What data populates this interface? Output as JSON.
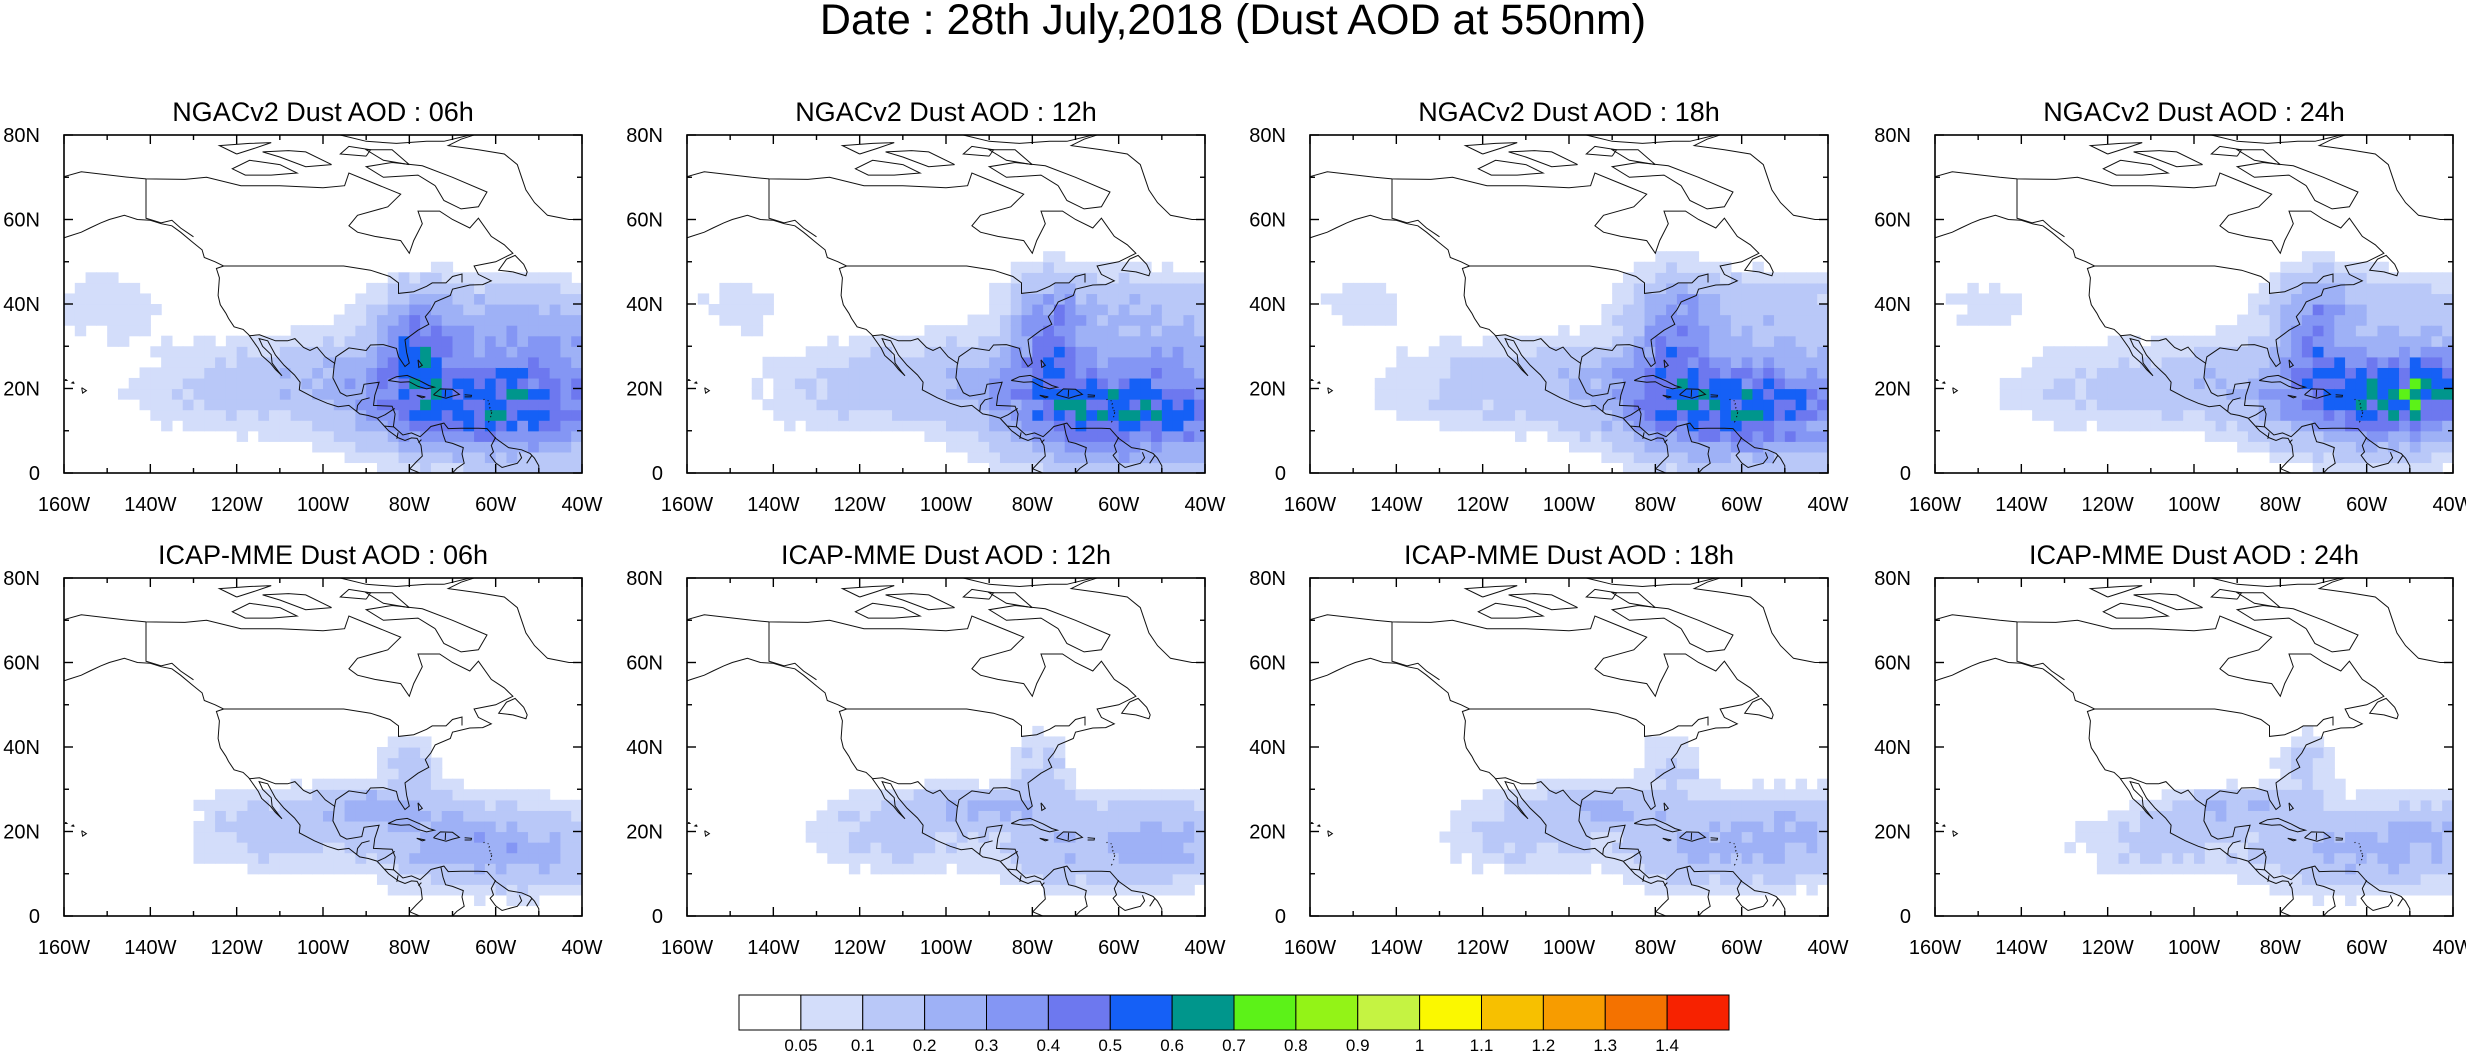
{
  "figure": {
    "title": "Date : 28th July,2018 (Dust AOD at 550nm)"
  },
  "panels": [
    {
      "title": "NGACv2 Dust AOD : 06h",
      "model": "NGACv2",
      "lead": "06h"
    },
    {
      "title": "NGACv2 Dust AOD : 12h",
      "model": "NGACv2",
      "lead": "12h"
    },
    {
      "title": "NGACv2 Dust AOD : 18h",
      "model": "NGACv2",
      "lead": "18h"
    },
    {
      "title": "NGACv2 Dust AOD : 24h",
      "model": "NGACv2",
      "lead": "24h"
    },
    {
      "title": "ICAP-MME Dust AOD : 06h",
      "model": "ICAP-MME",
      "lead": "06h"
    },
    {
      "title": "ICAP-MME Dust AOD : 12h",
      "model": "ICAP-MME",
      "lead": "12h"
    },
    {
      "title": "ICAP-MME Dust AOD : 18h",
      "model": "ICAP-MME",
      "lead": "18h"
    },
    {
      "title": "ICAP-MME Dust AOD : 24h",
      "model": "ICAP-MME",
      "lead": "24h"
    }
  ],
  "map": {
    "lon_range": [
      -160,
      -40
    ],
    "lat_range": [
      0,
      80
    ],
    "lon_ticks": [
      {
        "value": -160,
        "label": "160W"
      },
      {
        "value": -140,
        "label": "140W"
      },
      {
        "value": -120,
        "label": "120W"
      },
      {
        "value": -100,
        "label": "100W"
      },
      {
        "value": -80,
        "label": "80W"
      },
      {
        "value": -60,
        "label": "60W"
      },
      {
        "value": -40,
        "label": "40W"
      }
    ],
    "lat_ticks": [
      {
        "value": 0,
        "label": "0"
      },
      {
        "value": 20,
        "label": "20N"
      },
      {
        "value": 40,
        "label": "40N"
      },
      {
        "value": 60,
        "label": "60N"
      },
      {
        "value": 80,
        "label": "80N"
      }
    ]
  },
  "colorbar": {
    "labels": [
      "0.05",
      "0.1",
      "0.2",
      "0.3",
      "0.4",
      "0.5",
      "0.6",
      "0.7",
      "0.8",
      "0.9",
      "1",
      "1.1",
      "1.2",
      "1.3",
      "1.4"
    ],
    "colors": [
      "#ffffff",
      "#d3ddfa",
      "#b9c8f8",
      "#9eb1f6",
      "#8496f4",
      "#6d78ef",
      "#1560f6",
      "#00968c",
      "#5cf218",
      "#93f317",
      "#c5f342",
      "#fbf800",
      "#f7c000",
      "#f79c00",
      "#f47200",
      "#f72200"
    ]
  },
  "chart_data": {
    "type": "heatmap",
    "variable": "Dust AOD at 550nm",
    "lat_cell_deg": 2.5,
    "lon_cell_deg": 2.5,
    "levels": [
      0.05,
      0.1,
      0.2,
      0.3,
      0.4,
      0.5,
      0.6,
      0.7,
      0.8,
      0.9,
      1,
      1.1,
      1.2,
      1.3,
      1.4
    ],
    "panels": [
      {
        "id": "NGACv2-06h",
        "blobs": [
          {
            "lon": -48,
            "lat": 20,
            "slon": 22,
            "slat": 11,
            "amp": 0.38
          },
          {
            "lon": -68,
            "lat": 14,
            "slon": 16,
            "slat": 7,
            "amp": 0.3
          },
          {
            "lon": -78,
            "lat": 30,
            "slon": 6,
            "slat": 9,
            "amp": 0.3
          },
          {
            "lon": -95,
            "lat": 22,
            "slon": 16,
            "slat": 7,
            "amp": 0.16
          },
          {
            "lon": -60,
            "lat": 38,
            "slon": 18,
            "slat": 6,
            "amp": 0.14
          },
          {
            "lon": -125,
            "lat": 20,
            "slon": 16,
            "slat": 8,
            "amp": 0.1
          },
          {
            "lon": -150,
            "lat": 40,
            "slon": 10,
            "slat": 7,
            "amp": 0.08
          }
        ]
      },
      {
        "id": "NGACv2-12h",
        "blobs": [
          {
            "lon": -46,
            "lat": 18,
            "slon": 22,
            "slat": 11,
            "amp": 0.38
          },
          {
            "lon": -66,
            "lat": 13,
            "slon": 16,
            "slat": 7,
            "amp": 0.3
          },
          {
            "lon": -76,
            "lat": 32,
            "slon": 6,
            "slat": 10,
            "amp": 0.3
          },
          {
            "lon": -95,
            "lat": 22,
            "slon": 16,
            "slat": 7,
            "amp": 0.15
          },
          {
            "lon": -58,
            "lat": 40,
            "slon": 18,
            "slat": 6,
            "amp": 0.14
          },
          {
            "lon": -125,
            "lat": 20,
            "slon": 16,
            "slat": 8,
            "amp": 0.1
          },
          {
            "lon": -148,
            "lat": 40,
            "slon": 8,
            "slat": 5,
            "amp": 0.08
          }
        ]
      },
      {
        "id": "NGACv2-18h",
        "blobs": [
          {
            "lon": -50,
            "lat": 17,
            "slon": 20,
            "slat": 10,
            "amp": 0.4
          },
          {
            "lon": -70,
            "lat": 14,
            "slon": 14,
            "slat": 7,
            "amp": 0.28
          },
          {
            "lon": -76,
            "lat": 32,
            "slon": 6,
            "slat": 10,
            "amp": 0.32
          },
          {
            "lon": -95,
            "lat": 22,
            "slon": 16,
            "slat": 7,
            "amp": 0.15
          },
          {
            "lon": -58,
            "lat": 40,
            "slon": 18,
            "slat": 6,
            "amp": 0.14
          },
          {
            "lon": -125,
            "lat": 20,
            "slon": 16,
            "slat": 8,
            "amp": 0.1
          },
          {
            "lon": -148,
            "lat": 40,
            "slon": 8,
            "slat": 5,
            "amp": 0.08
          }
        ]
      },
      {
        "id": "NGACv2-24h",
        "blobs": [
          {
            "lon": -45,
            "lat": 20,
            "slon": 14,
            "slat": 8,
            "amp": 0.45
          },
          {
            "lon": -62,
            "lat": 16,
            "slon": 16,
            "slat": 8,
            "amp": 0.3
          },
          {
            "lon": -72,
            "lat": 32,
            "slon": 6,
            "slat": 10,
            "amp": 0.3
          },
          {
            "lon": -92,
            "lat": 22,
            "slon": 16,
            "slat": 7,
            "amp": 0.15
          },
          {
            "lon": -56,
            "lat": 40,
            "slon": 18,
            "slat": 6,
            "amp": 0.14
          },
          {
            "lon": -125,
            "lat": 20,
            "slon": 16,
            "slat": 8,
            "amp": 0.1
          },
          {
            "lon": -148,
            "lat": 40,
            "slon": 8,
            "slat": 5,
            "amp": 0.08
          }
        ]
      },
      {
        "id": "ICAP-MME-06h",
        "blobs": [
          {
            "lon": -52,
            "lat": 16,
            "slon": 14,
            "slat": 7,
            "amp": 0.22
          },
          {
            "lon": -75,
            "lat": 18,
            "slon": 12,
            "slat": 7,
            "amp": 0.18
          },
          {
            "lon": -112,
            "lat": 20,
            "slon": 14,
            "slat": 7,
            "amp": 0.14
          },
          {
            "lon": -80,
            "lat": 36,
            "slon": 5,
            "slat": 6,
            "amp": 0.12
          },
          {
            "lon": -90,
            "lat": 26,
            "slon": 10,
            "slat": 3,
            "amp": 0.18
          }
        ]
      },
      {
        "id": "ICAP-MME-12h",
        "blobs": [
          {
            "lon": -48,
            "lat": 18,
            "slon": 13,
            "slat": 7,
            "amp": 0.22
          },
          {
            "lon": -72,
            "lat": 16,
            "slon": 12,
            "slat": 7,
            "amp": 0.16
          },
          {
            "lon": -112,
            "lat": 20,
            "slon": 14,
            "slat": 7,
            "amp": 0.14
          },
          {
            "lon": -78,
            "lat": 36,
            "slon": 5,
            "slat": 6,
            "amp": 0.12
          },
          {
            "lon": -90,
            "lat": 26,
            "slon": 10,
            "slat": 3,
            "amp": 0.18
          }
        ]
      },
      {
        "id": "ICAP-MME-18h",
        "blobs": [
          {
            "lon": -48,
            "lat": 19,
            "slon": 13,
            "slat": 7,
            "amp": 0.22
          },
          {
            "lon": -72,
            "lat": 16,
            "slon": 12,
            "slat": 7,
            "amp": 0.16
          },
          {
            "lon": -110,
            "lat": 20,
            "slon": 14,
            "slat": 7,
            "amp": 0.14
          },
          {
            "lon": -76,
            "lat": 36,
            "slon": 5,
            "slat": 6,
            "amp": 0.12
          },
          {
            "lon": -90,
            "lat": 26,
            "slon": 10,
            "slat": 3,
            "amp": 0.18
          }
        ]
      },
      {
        "id": "ICAP-MME-24h",
        "blobs": [
          {
            "lon": -46,
            "lat": 18,
            "slon": 13,
            "slat": 7,
            "amp": 0.22
          },
          {
            "lon": -70,
            "lat": 15,
            "slon": 12,
            "slat": 7,
            "amp": 0.16
          },
          {
            "lon": -108,
            "lat": 18,
            "slon": 14,
            "slat": 6,
            "amp": 0.14
          },
          {
            "lon": -74,
            "lat": 36,
            "slon": 5,
            "slat": 6,
            "amp": 0.12
          },
          {
            "lon": -90,
            "lat": 26,
            "slon": 10,
            "slat": 3,
            "amp": 0.18
          }
        ]
      }
    ]
  }
}
